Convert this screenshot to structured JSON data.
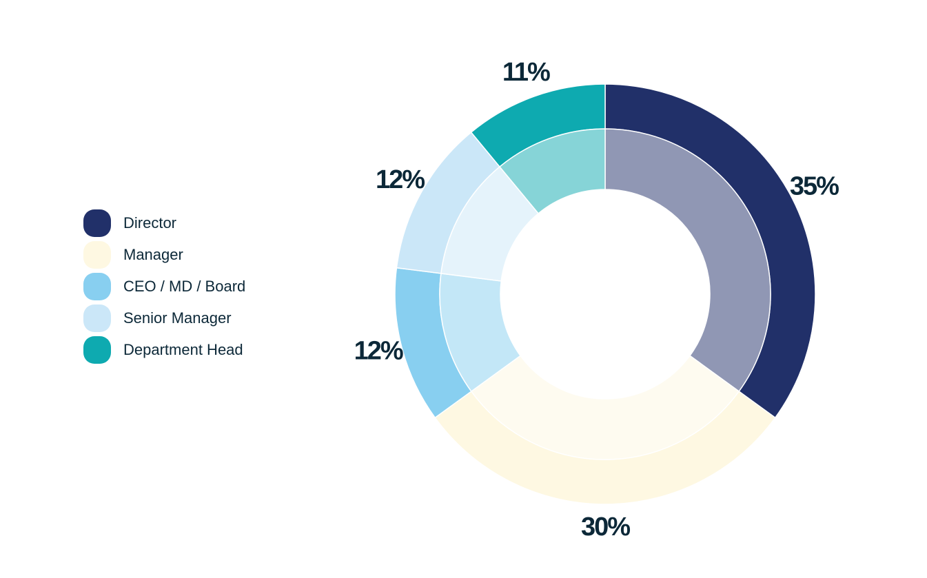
{
  "chart_data": {
    "type": "donut",
    "categories": [
      "Director",
      "Manager",
      "CEO / MD / Board",
      "Senior Manager",
      "Department Head"
    ],
    "values": [
      35,
      30,
      12,
      12,
      11
    ],
    "value_labels": [
      "35%",
      "30%",
      "12%",
      "12%",
      "11%"
    ],
    "colors": [
      "#213069",
      "#fef8e2",
      "#88cff0",
      "#cbe7f8",
      "#0eaab0"
    ],
    "legend": "left"
  }
}
